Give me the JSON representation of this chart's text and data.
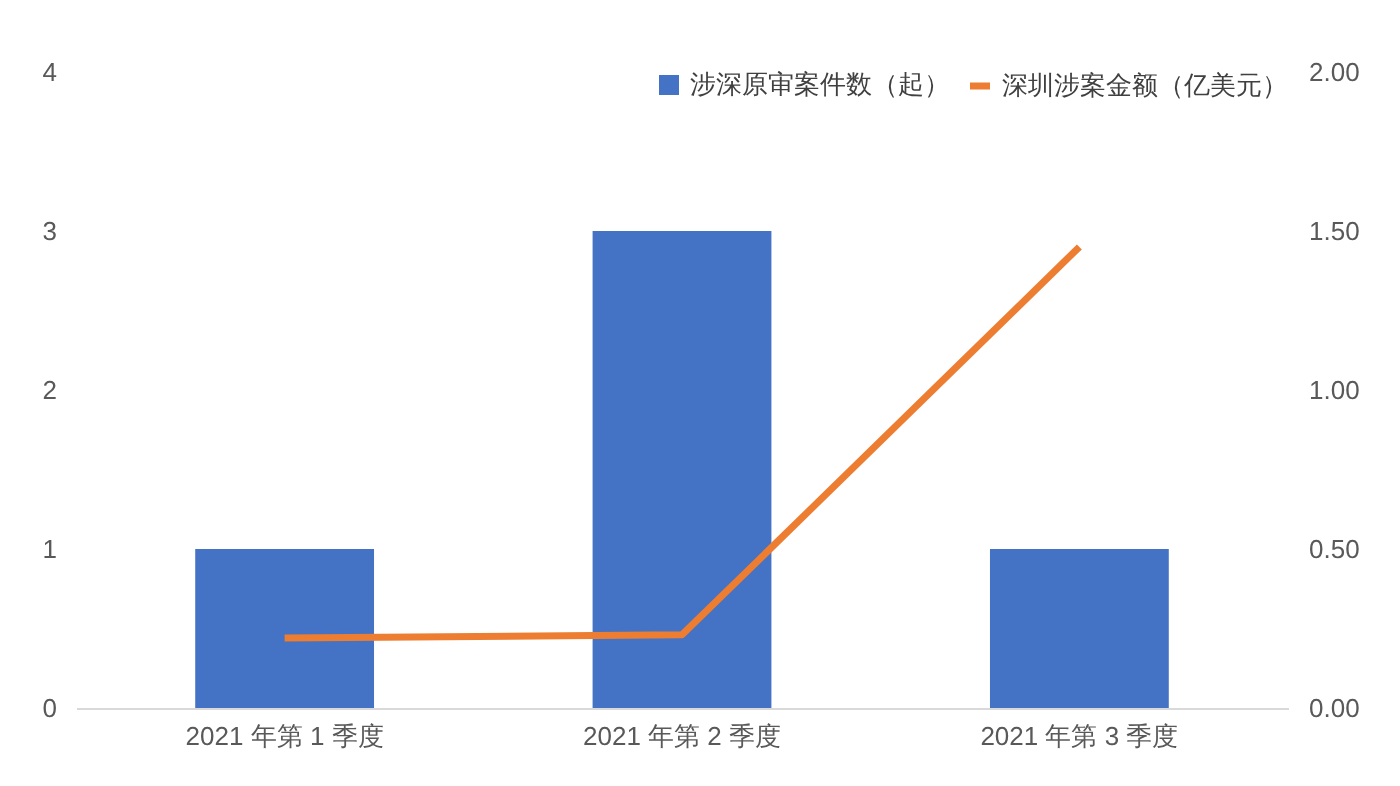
{
  "chart_data": {
    "type": "bar",
    "categories": [
      "2021 年第 1 季度",
      "2021 年第 2 季度",
      "2021 年第 3 季度"
    ],
    "series": [
      {
        "name": "涉深原审案件数（起）",
        "color": "#4472c4",
        "values": [
          1,
          3,
          1
        ]
      },
      {
        "name": "深圳涉案金额（亿美元）",
        "color": "#ed7d31",
        "type": "line",
        "axis": "y2",
        "values": [
          0.22,
          0.23,
          1.45
        ]
      }
    ],
    "ylim": [
      0,
      4
    ],
    "yticks": [
      0,
      1,
      2,
      3,
      4
    ],
    "y2lim": [
      0,
      2
    ],
    "y2ticks": [
      {
        "value": 0,
        "label": "0.00"
      },
      {
        "value": 0.5,
        "label": "0.50"
      },
      {
        "value": 1,
        "label": "1.00"
      },
      {
        "value": 1.5,
        "label": "1.50"
      },
      {
        "value": 2,
        "label": "2.00"
      }
    ],
    "grid": false,
    "legend": "top right"
  }
}
